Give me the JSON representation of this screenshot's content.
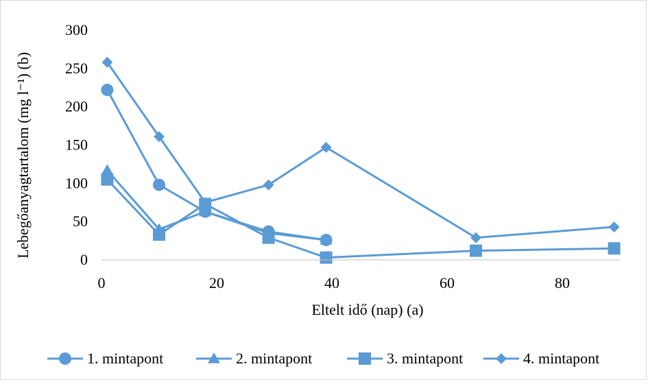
{
  "chart_data": {
    "type": "line",
    "xlabel": "Eltelt idő (nap) (a)",
    "ylabel": "Lebegőanyagtartalom (mg l⁻¹) (b)",
    "xlim": [
      0,
      90
    ],
    "ylim": [
      0,
      300
    ],
    "xticks": [
      0,
      20,
      40,
      60,
      80
    ],
    "yticks": [
      0,
      50,
      100,
      150,
      200,
      250,
      300
    ],
    "grid": false,
    "legend_position": "bottom",
    "series_color": "#5b9bd5",
    "series": [
      {
        "name": "1. mintapont",
        "marker": "circle",
        "x": [
          1,
          10,
          18,
          29,
          39
        ],
        "y": [
          222,
          98,
          63,
          37,
          26
        ]
      },
      {
        "name": "2. mintapont",
        "marker": "triangle",
        "x": [
          1,
          10,
          18,
          29,
          39
        ],
        "y": [
          117,
          40,
          63,
          35,
          26
        ]
      },
      {
        "name": "3. mintapont",
        "marker": "square",
        "x": [
          1,
          10,
          18,
          29,
          39,
          65,
          89
        ],
        "y": [
          105,
          33,
          73,
          29,
          3,
          12,
          15
        ]
      },
      {
        "name": "4. mintapont",
        "marker": "diamond",
        "x": [
          1,
          10,
          18,
          29,
          39,
          65,
          89
        ],
        "y": [
          258,
          161,
          75,
          98,
          147,
          29,
          43
        ]
      }
    ]
  }
}
